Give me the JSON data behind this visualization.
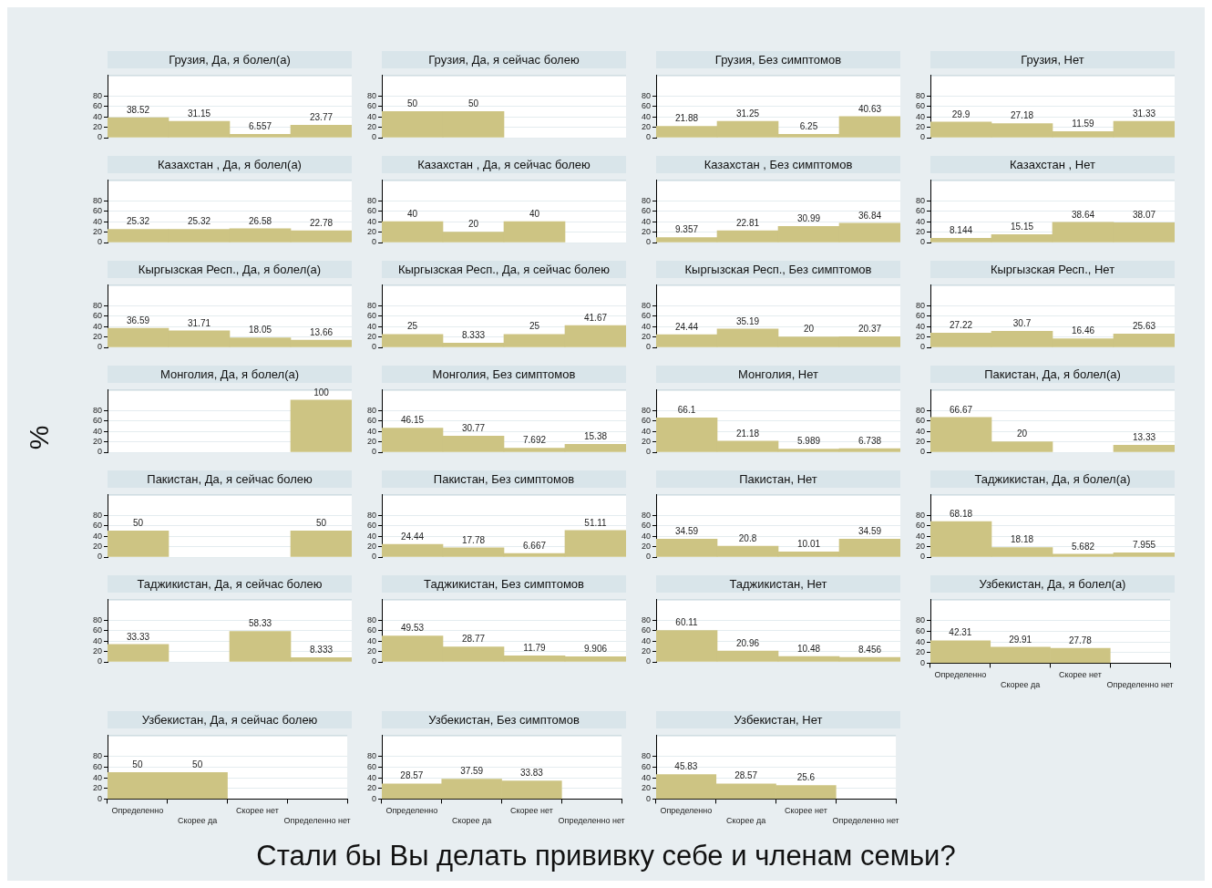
{
  "chart_data": [
    {
      "type": "bar",
      "title": "Грузия, Да, я болел(а)",
      "categories": [
        null,
        null,
        null,
        null
      ],
      "values": [
        38.52,
        31.15,
        6.557,
        23.77
      ],
      "color": "#cdc483",
      "ylim": [
        0,
        120
      ],
      "yticks": [
        0,
        20,
        40,
        60,
        80
      ],
      "grid": "y",
      "data_labels": true,
      "tick_labels": "y"
    },
    {
      "type": "bar",
      "title": "Грузия, Да, я сейчас болею",
      "categories": [
        null,
        null,
        null,
        null
      ],
      "values": [
        50,
        50,
        null,
        null
      ],
      "color": "#cdc483",
      "ylim": [
        0,
        120
      ],
      "yticks": [
        0,
        20,
        40,
        60,
        80
      ],
      "grid": "y",
      "data_labels": true,
      "tick_labels": "y"
    },
    {
      "type": "bar",
      "title": "Грузия, Без симптомов",
      "categories": [
        null,
        null,
        null,
        null
      ],
      "values": [
        21.88,
        31.25,
        6.25,
        40.63
      ],
      "color": "#cdc483",
      "ylim": [
        0,
        120
      ],
      "yticks": [
        0,
        20,
        40,
        60,
        80
      ],
      "grid": "y",
      "data_labels": true,
      "tick_labels": "y"
    },
    {
      "type": "bar",
      "title": "Грузия, Нет",
      "categories": [
        null,
        null,
        null,
        null
      ],
      "values": [
        29.9,
        27.18,
        11.59,
        31.33
      ],
      "color": "#cdc483",
      "ylim": [
        0,
        120
      ],
      "yticks": [
        0,
        20,
        40,
        60,
        80
      ],
      "grid": "y",
      "data_labels": true,
      "tick_labels": "y"
    },
    {
      "type": "bar",
      "title": "Казахстан , Да, я болел(а)",
      "categories": [
        null,
        null,
        null,
        null
      ],
      "values": [
        25.32,
        25.32,
        26.58,
        22.78
      ],
      "color": "#cdc483",
      "ylim": [
        0,
        120
      ],
      "yticks": [
        0,
        20,
        40,
        60,
        80
      ],
      "grid": "y",
      "data_labels": true,
      "tick_labels": "y"
    },
    {
      "type": "bar",
      "title": "Казахстан , Да, я сейчас болею",
      "categories": [
        null,
        null,
        null,
        null
      ],
      "values": [
        40,
        20,
        40,
        null
      ],
      "color": "#cdc483",
      "ylim": [
        0,
        120
      ],
      "yticks": [
        0,
        20,
        40,
        60,
        80
      ],
      "grid": "y",
      "data_labels": true,
      "tick_labels": "y"
    },
    {
      "type": "bar",
      "title": "Казахстан , Без симптомов",
      "categories": [
        null,
        null,
        null,
        null
      ],
      "values": [
        9.357,
        22.81,
        30.99,
        36.84
      ],
      "color": "#cdc483",
      "ylim": [
        0,
        120
      ],
      "yticks": [
        0,
        20,
        40,
        60,
        80
      ],
      "grid": "y",
      "data_labels": true,
      "tick_labels": "y"
    },
    {
      "type": "bar",
      "title": "Казахстан , Нет",
      "categories": [
        null,
        null,
        null,
        null
      ],
      "values": [
        8.144,
        15.15,
        38.64,
        38.07
      ],
      "color": "#cdc483",
      "ylim": [
        0,
        120
      ],
      "yticks": [
        0,
        20,
        40,
        60,
        80
      ],
      "grid": "y",
      "data_labels": true,
      "tick_labels": "y"
    },
    {
      "type": "bar",
      "title": "Кыргызская Респ., Да, я болел(а)",
      "categories": [
        null,
        null,
        null,
        null
      ],
      "values": [
        36.59,
        31.71,
        18.05,
        13.66
      ],
      "color": "#cdc483",
      "ylim": [
        0,
        120
      ],
      "yticks": [
        0,
        20,
        40,
        60,
        80
      ],
      "grid": "y",
      "data_labels": true,
      "tick_labels": "y"
    },
    {
      "type": "bar",
      "title": "Кыргызская Респ., Да, я сейчас болею",
      "categories": [
        null,
        null,
        null,
        null
      ],
      "values": [
        25,
        8.333,
        25,
        41.67
      ],
      "color": "#cdc483",
      "ylim": [
        0,
        120
      ],
      "yticks": [
        0,
        20,
        40,
        60,
        80
      ],
      "grid": "y",
      "data_labels": true,
      "tick_labels": "y"
    },
    {
      "type": "bar",
      "title": "Кыргызская Респ., Без симптомов",
      "categories": [
        null,
        null,
        null,
        null
      ],
      "values": [
        24.44,
        35.19,
        20,
        20.37
      ],
      "color": "#cdc483",
      "ylim": [
        0,
        120
      ],
      "yticks": [
        0,
        20,
        40,
        60,
        80
      ],
      "grid": "y",
      "data_labels": true,
      "tick_labels": "y"
    },
    {
      "type": "bar",
      "title": "Кыргызская Респ., Нет",
      "categories": [
        null,
        null,
        null,
        null
      ],
      "values": [
        27.22,
        30.7,
        16.46,
        25.63
      ],
      "color": "#cdc483",
      "ylim": [
        0,
        120
      ],
      "yticks": [
        0,
        20,
        40,
        60,
        80
      ],
      "grid": "y",
      "data_labels": true,
      "tick_labels": "y"
    },
    {
      "type": "bar",
      "title": "Монголия, Да, я болел(а)",
      "ylabel": "%",
      "categories": [
        null,
        null,
        null,
        null
      ],
      "values": [
        null,
        null,
        null,
        100
      ],
      "color": "#cdc483",
      "ylim": [
        0,
        120
      ],
      "yticks": [
        0,
        20,
        40,
        60,
        80
      ],
      "grid": "y",
      "data_labels": true,
      "tick_labels": "y"
    },
    {
      "type": "bar",
      "title": "Монголия, Без симптомов",
      "categories": [
        null,
        null,
        null,
        null
      ],
      "values": [
        46.15,
        30.77,
        7.692,
        15.38
      ],
      "color": "#cdc483",
      "ylim": [
        0,
        120
      ],
      "yticks": [
        0,
        20,
        40,
        60,
        80
      ],
      "grid": "y",
      "data_labels": true,
      "tick_labels": "y"
    },
    {
      "type": "bar",
      "title": "Монголия, Нет",
      "categories": [
        null,
        null,
        null,
        null
      ],
      "values": [
        66.1,
        21.18,
        5.989,
        6.738
      ],
      "color": "#cdc483",
      "ylim": [
        0,
        120
      ],
      "yticks": [
        0,
        20,
        40,
        60,
        80
      ],
      "grid": "y",
      "data_labels": true,
      "tick_labels": "y"
    },
    {
      "type": "bar",
      "title": "Пакистан, Да, я болел(а)",
      "categories": [
        null,
        null,
        null,
        null
      ],
      "values": [
        66.67,
        20,
        null,
        13.33
      ],
      "color": "#cdc483",
      "ylim": [
        0,
        120
      ],
      "yticks": [
        0,
        20,
        40,
        60,
        80
      ],
      "grid": "y",
      "data_labels": true,
      "tick_labels": "y"
    },
    {
      "type": "bar",
      "title": "Пакистан, Да, я сейчас болею",
      "categories": [
        null,
        null,
        null,
        null
      ],
      "values": [
        50,
        null,
        null,
        50
      ],
      "color": "#cdc483",
      "ylim": [
        0,
        120
      ],
      "yticks": [
        0,
        20,
        40,
        60,
        80
      ],
      "grid": "y",
      "data_labels": true,
      "tick_labels": "y"
    },
    {
      "type": "bar",
      "title": "Пакистан, Без симптомов",
      "categories": [
        null,
        null,
        null,
        null
      ],
      "values": [
        24.44,
        17.78,
        6.667,
        51.11
      ],
      "color": "#cdc483",
      "ylim": [
        0,
        120
      ],
      "yticks": [
        0,
        20,
        40,
        60,
        80
      ],
      "grid": "y",
      "data_labels": true,
      "tick_labels": "y"
    },
    {
      "type": "bar",
      "title": "Пакистан, Нет",
      "categories": [
        null,
        null,
        null,
        null
      ],
      "values": [
        34.59,
        20.8,
        10.01,
        34.59
      ],
      "color": "#cdc483",
      "ylim": [
        0,
        120
      ],
      "yticks": [
        0,
        20,
        40,
        60,
        80
      ],
      "grid": "y",
      "data_labels": true,
      "tick_labels": "y"
    },
    {
      "type": "bar",
      "title": "Таджикистан, Да, я болел(а)",
      "categories": [
        null,
        null,
        null,
        null
      ],
      "values": [
        68.18,
        18.18,
        5.682,
        7.955
      ],
      "color": "#cdc483",
      "ylim": [
        0,
        120
      ],
      "yticks": [
        0,
        20,
        40,
        60,
        80
      ],
      "grid": "y",
      "data_labels": true,
      "tick_labels": "y"
    },
    {
      "type": "bar",
      "title": "Таджикистан, Да, я сейчас болею",
      "categories": [
        null,
        null,
        null,
        null
      ],
      "values": [
        33.33,
        null,
        58.33,
        8.333
      ],
      "color": "#cdc483",
      "ylim": [
        0,
        120
      ],
      "yticks": [
        0,
        20,
        40,
        60,
        80
      ],
      "grid": "y",
      "data_labels": true,
      "tick_labels": "y"
    },
    {
      "type": "bar",
      "title": "Таджикистан, Без симптомов",
      "categories": [
        null,
        null,
        null,
        null
      ],
      "values": [
        49.53,
        28.77,
        11.79,
        9.906
      ],
      "color": "#cdc483",
      "ylim": [
        0,
        120
      ],
      "yticks": [
        0,
        20,
        40,
        60,
        80
      ],
      "grid": "y",
      "data_labels": true,
      "tick_labels": "y"
    },
    {
      "type": "bar",
      "title": "Таджикистан, Нет",
      "categories": [
        null,
        null,
        null,
        null
      ],
      "values": [
        60.11,
        20.96,
        10.48,
        8.456
      ],
      "color": "#cdc483",
      "ylim": [
        0,
        120
      ],
      "yticks": [
        0,
        20,
        40,
        60,
        80
      ],
      "grid": "y",
      "data_labels": true,
      "tick_labels": "y"
    },
    {
      "type": "bar",
      "title": "Узбекистан, Да, я болел(а)",
      "categories": [
        "Определенно",
        "Скорее да",
        "Скорее нет",
        "Определенно нет"
      ],
      "values": [
        42.31,
        29.91,
        27.78,
        null
      ],
      "color": "#cdc483",
      "ylim": [
        0,
        120
      ],
      "yticks": [
        0,
        20,
        40,
        60,
        80
      ],
      "grid": "y",
      "data_labels": true
    },
    {
      "type": "bar",
      "title": "Узбекистан, Да, я сейчас болею",
      "categories": [
        "Определенно",
        "Скорее да",
        "Скорее нет",
        "Определенно нет"
      ],
      "values": [
        50,
        50,
        null,
        null
      ],
      "color": "#cdc483",
      "ylim": [
        0,
        120
      ],
      "yticks": [
        0,
        20,
        40,
        60,
        80
      ],
      "grid": "y",
      "data_labels": true
    },
    {
      "type": "bar",
      "title": "Узбекистан, Без симптомов",
      "xlabel": "Стали бы Вы делать прививку себе и членам семьи?",
      "categories": [
        "Определенно",
        "Скорее да",
        "Скорее нет",
        "Определенно нет"
      ],
      "values": [
        28.57,
        37.59,
        33.83,
        null
      ],
      "color": "#cdc483",
      "ylim": [
        0,
        120
      ],
      "yticks": [
        0,
        20,
        40,
        60,
        80
      ],
      "grid": "y",
      "data_labels": true
    },
    {
      "type": "bar",
      "title": "Узбекистан, Нет",
      "categories": [
        "Определенно",
        "Скорее да",
        "Скорее нет",
        "Определенно нет"
      ],
      "values": [
        45.83,
        28.57,
        25.6,
        null
      ],
      "color": "#cdc483",
      "ylim": [
        0,
        120
      ],
      "yticks": [
        0,
        20,
        40,
        60,
        80
      ],
      "grid": "y",
      "data_labels": true
    }
  ]
}
